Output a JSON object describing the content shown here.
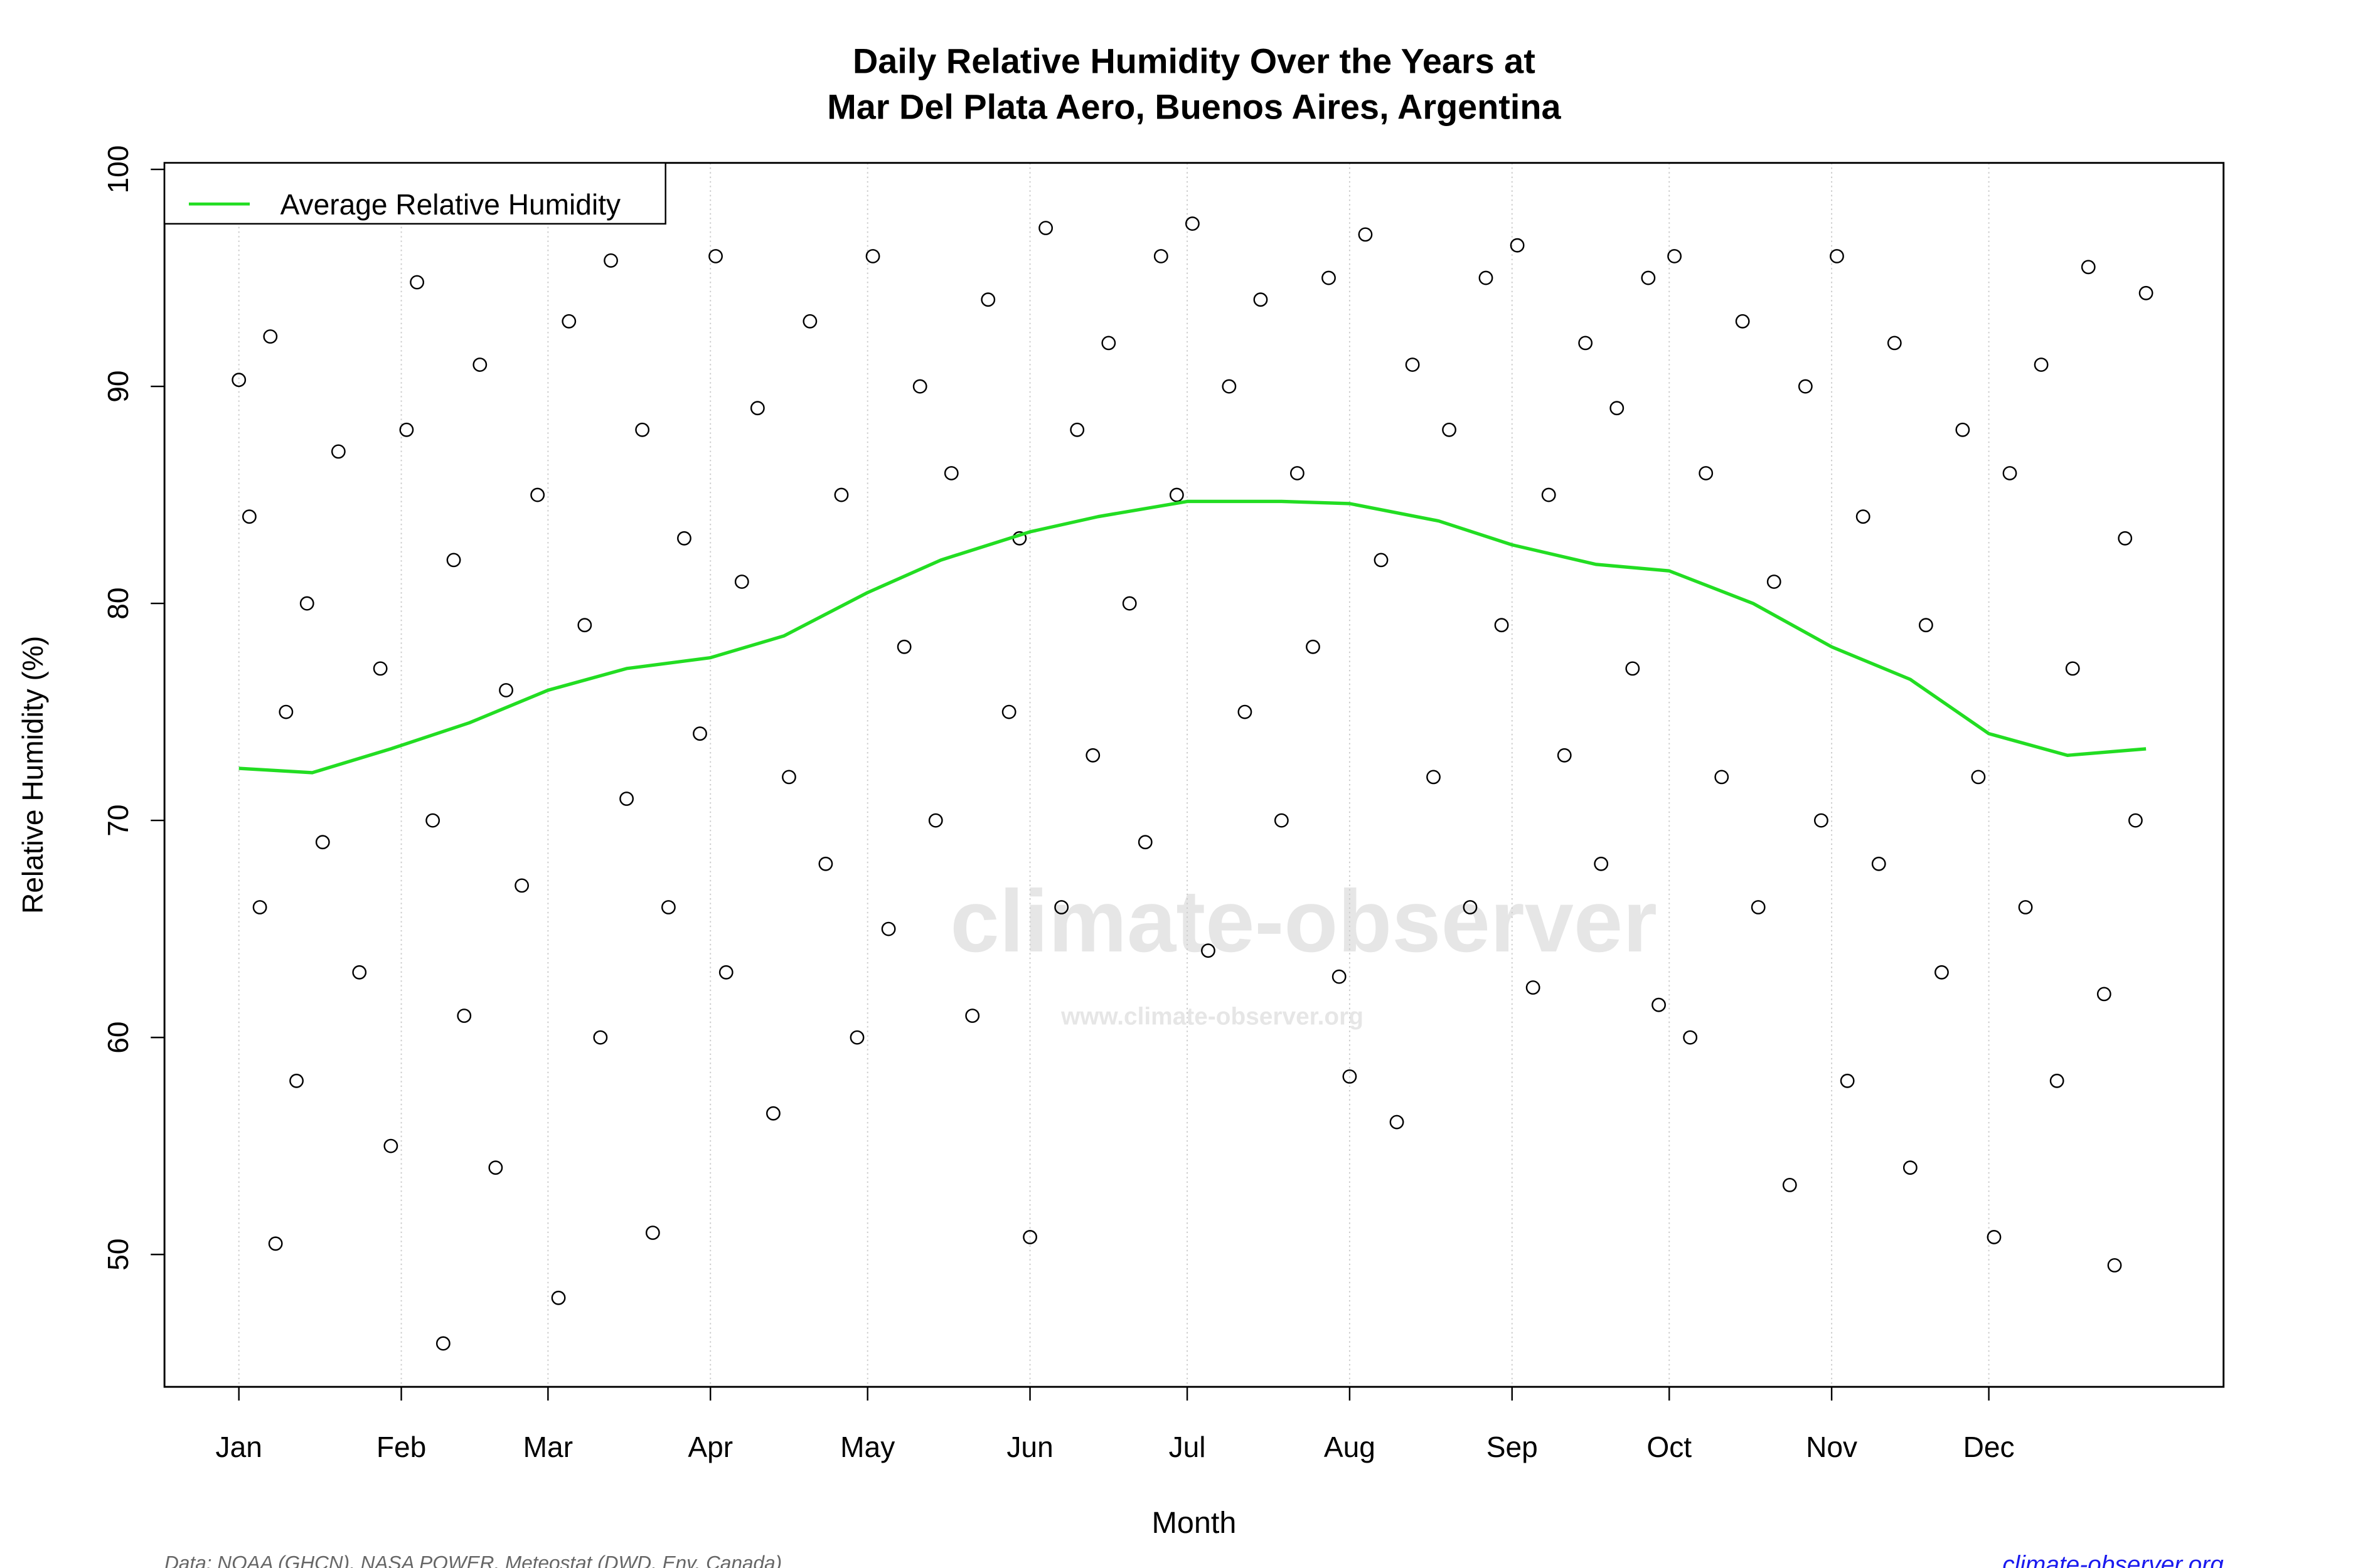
{
  "chart_data": {
    "type": "scatter",
    "title": [
      "Daily Relative Humidity Over the Years at",
      "Mar Del Plata Aero, Buenos Aires, Argentina"
    ],
    "xlabel": "Month",
    "ylabel": "Relative Humidity  (%)",
    "source": "Data: NOAA (GHCN), NASA POWER, Meteostat (DWD, Env. Canada)",
    "website": "climate-observer.org",
    "watermark": [
      "climate-observer",
      "www.climate-observer.org"
    ],
    "xlim": [
      -13.2,
      379.8
    ],
    "ylim": [
      43.9,
      100.3
    ],
    "xticks": [
      {
        "value": 1,
        "label": "Jan"
      },
      {
        "value": 32,
        "label": "Feb"
      },
      {
        "value": 60,
        "label": "Mar"
      },
      {
        "value": 91,
        "label": "Apr"
      },
      {
        "value": 121,
        "label": "May"
      },
      {
        "value": 152,
        "label": "Jun"
      },
      {
        "value": 182,
        "label": "Jul"
      },
      {
        "value": 213,
        "label": "Aug"
      },
      {
        "value": 244,
        "label": "Sep"
      },
      {
        "value": 274,
        "label": "Oct"
      },
      {
        "value": 305,
        "label": "Nov"
      },
      {
        "value": 335,
        "label": "Dec"
      }
    ],
    "yticks": [
      50,
      60,
      70,
      80,
      90,
      100
    ],
    "grid": "x",
    "legend": "top-left",
    "series": [
      {
        "type": "scatter",
        "color": "#000000",
        "x": [
          1,
          3,
          5,
          7,
          8,
          10,
          12,
          14,
          17,
          20,
          24,
          28,
          30,
          33,
          35,
          38,
          40,
          42,
          44,
          47,
          50,
          52,
          55,
          58,
          62,
          64,
          67,
          70,
          72,
          75,
          78,
          80,
          83,
          86,
          89,
          92,
          94,
          97,
          100,
          103,
          106,
          110,
          113,
          116,
          119,
          122,
          125,
          128,
          131,
          134,
          137,
          141,
          144,
          148,
          150,
          152,
          155,
          158,
          161,
          164,
          167,
          171,
          174,
          177,
          180,
          183,
          186,
          190,
          193,
          196,
          200,
          203,
          206,
          209,
          211,
          213,
          216,
          219,
          222,
          225,
          229,
          232,
          236,
          239,
          242,
          245,
          248,
          251,
          254,
          258,
          261,
          264,
          267,
          270,
          272,
          275,
          278,
          281,
          284,
          288,
          291,
          294,
          297,
          300,
          303,
          306,
          308,
          311,
          314,
          317,
          320,
          323,
          326,
          330,
          333,
          336,
          339,
          342,
          345,
          348,
          351,
          354,
          357,
          359,
          361,
          363,
          365
        ],
        "values": [
          90.3,
          84,
          66,
          92.3,
          50.5,
          75,
          58,
          80,
          69,
          87,
          63,
          77,
          55,
          88,
          94.8,
          70,
          45.9,
          82,
          61,
          91,
          54,
          76,
          67,
          85,
          48,
          93,
          79,
          60,
          95.8,
          71,
          88,
          51,
          66,
          83,
          74,
          96,
          63,
          81,
          89,
          56.5,
          72,
          93,
          68,
          85,
          60,
          96,
          65,
          78,
          90,
          70,
          86,
          61,
          94,
          75,
          83,
          50.8,
          97.3,
          66,
          88,
          73,
          92,
          80,
          69,
          96,
          85,
          97.5,
          64,
          90,
          75,
          94,
          70,
          86,
          78,
          95,
          62.8,
          58.2,
          97,
          82,
          56.1,
          91,
          72,
          88,
          66,
          95,
          79,
          96.5,
          62.3,
          85,
          73,
          92,
          68,
          89,
          77,
          95,
          61.5,
          96,
          60,
          86,
          72,
          93,
          66,
          81,
          53.2,
          90,
          70,
          96,
          58,
          84,
          68,
          92,
          54,
          79,
          63,
          88,
          72,
          50.8,
          86,
          66,
          91,
          58,
          77,
          95.5,
          62,
          49.5,
          83,
          70,
          94.3
        ]
      },
      {
        "type": "line",
        "name": "Average Relative Humidity",
        "color": "#22dd22",
        "x": [
          1,
          15,
          30,
          45,
          60,
          75,
          91,
          105,
          121,
          135,
          152,
          165,
          182,
          200,
          213,
          230,
          244,
          260,
          274,
          290,
          305,
          320,
          335,
          350,
          365
        ],
        "values": [
          72.4,
          72.2,
          73.3,
          74.5,
          76.0,
          77.0,
          77.5,
          78.5,
          80.5,
          82.0,
          83.3,
          84.0,
          84.7,
          84.7,
          84.6,
          83.8,
          82.7,
          81.8,
          81.5,
          80.0,
          78.0,
          76.5,
          74.0,
          73.0,
          73.3
        ]
      }
    ]
  }
}
